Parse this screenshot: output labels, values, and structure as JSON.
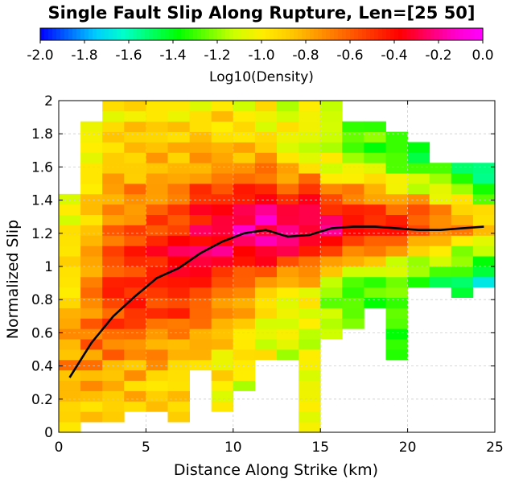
{
  "chart_data": {
    "type": "heatmap",
    "title": "Single Fault Slip Along Rupture, Len=[25 50]",
    "xlabel": "Distance Along Strike (km)",
    "ylabel": "Normalized Slip",
    "xlim": [
      0,
      25
    ],
    "ylim": [
      0,
      2
    ],
    "x_ticks": [
      "0",
      "5",
      "10",
      "15",
      "20",
      "25"
    ],
    "y_ticks": [
      "0",
      "0.2",
      "0.4",
      "0.6",
      "0.8",
      "1",
      "1.2",
      "1.4",
      "1.6",
      "1.8",
      "2"
    ],
    "grid": true,
    "bin_width_x": 1.25,
    "bin_width_y": 0.0625,
    "colorbar": {
      "label": "Log10(Density)",
      "range": [
        -2.0,
        0.0
      ],
      "ticks": [
        "-2.0",
        "-1.8",
        "-1.6",
        "-1.4",
        "-1.2",
        "-1.0",
        "-0.8",
        "-0.6",
        "-0.4",
        "-0.2",
        "0.0"
      ],
      "placement": "top",
      "colormap": [
        "#0000ff",
        "#0066ff",
        "#00ccff",
        "#00ffcc",
        "#00ff66",
        "#00ff00",
        "#66ff00",
        "#ccff00",
        "#ffee00",
        "#ffcc00",
        "#ff9900",
        "#ff6600",
        "#ff3300",
        "#ff0000",
        "#ff0066",
        "#ff00cc",
        "#ff00ff"
      ]
    },
    "density_profiles": [
      {
        "x": 0.625,
        "lo": 0.0,
        "hi": 1.44,
        "center": 0.35,
        "peak": 1.0,
        "sigma": 0.35,
        "floor": -1.05,
        "top": -0.75
      },
      {
        "x": 1.875,
        "lo": 0.05,
        "hi": 1.88,
        "center": 0.7,
        "peak": 1.0,
        "sigma": 0.45,
        "floor": -1.05,
        "top": -0.65
      },
      {
        "x": 3.125,
        "lo": 0.05,
        "hi": 2.0,
        "center": 0.85,
        "peak": 1.0,
        "sigma": 0.45,
        "floor": -1.0,
        "top": -0.55
      },
      {
        "x": 4.375,
        "lo": 0.12,
        "hi": 2.0,
        "center": 0.95,
        "peak": 1.0,
        "sigma": 0.45,
        "floor": -1.0,
        "top": -0.5
      },
      {
        "x": 5.625,
        "lo": 0.15,
        "hi": 2.0,
        "center": 1.0,
        "peak": 1.0,
        "sigma": 0.45,
        "floor": -1.05,
        "top": -0.45
      },
      {
        "x": 6.875,
        "lo": 0.06,
        "hi": 2.0,
        "center": 1.05,
        "peak": 1.0,
        "sigma": 0.4,
        "floor": -1.0,
        "top": -0.38
      },
      {
        "x": 8.125,
        "lo": 0.35,
        "hi": 2.0,
        "center": 1.12,
        "peak": 1.0,
        "sigma": 0.36,
        "floor": -1.0,
        "top": -0.32
      },
      {
        "x": 9.375,
        "lo": 0.12,
        "hi": 2.0,
        "center": 1.18,
        "peak": 1.0,
        "sigma": 0.32,
        "floor": -1.0,
        "top": -0.25
      },
      {
        "x": 10.625,
        "lo": 0.28,
        "hi": 2.0,
        "center": 1.22,
        "peak": 1.0,
        "sigma": 0.29,
        "floor": -1.05,
        "top": -0.22
      },
      {
        "x": 11.875,
        "lo": 0.45,
        "hi": 2.0,
        "center": 1.25,
        "peak": 1.0,
        "sigma": 0.26,
        "floor": -1.05,
        "top": -0.2
      },
      {
        "x": 13.125,
        "lo": 0.45,
        "hi": 2.0,
        "center": 1.25,
        "peak": 1.0,
        "sigma": 0.23,
        "floor": -1.1,
        "top": -0.2
      },
      {
        "x": 14.375,
        "lo": 0.0,
        "hi": 2.0,
        "center": 1.25,
        "peak": 1.0,
        "sigma": 0.21,
        "floor": -1.1,
        "top": -0.22
      },
      {
        "x": 15.625,
        "lo": 0.55,
        "hi": 2.0,
        "center": 1.25,
        "peak": 1.0,
        "sigma": 0.19,
        "floor": -1.2,
        "top": -0.28
      },
      {
        "x": 16.875,
        "lo": 0.6,
        "hi": 1.88,
        "center": 1.27,
        "peak": 1.0,
        "sigma": 0.18,
        "floor": -1.3,
        "top": -0.35
      },
      {
        "x": 18.125,
        "lo": 0.75,
        "hi": 1.88,
        "center": 1.27,
        "peak": 1.0,
        "sigma": 0.17,
        "floor": -1.3,
        "top": -0.42
      },
      {
        "x": 19.375,
        "lo": 0.45,
        "hi": 1.82,
        "center": 1.27,
        "peak": 1.0,
        "sigma": 0.16,
        "floor": -1.35,
        "top": -0.48
      },
      {
        "x": 20.625,
        "lo": 0.88,
        "hi": 1.75,
        "center": 1.26,
        "peak": 1.0,
        "sigma": 0.16,
        "floor": -1.4,
        "top": -0.55
      },
      {
        "x": 21.875,
        "lo": 0.88,
        "hi": 1.62,
        "center": 1.26,
        "peak": 1.0,
        "sigma": 0.15,
        "floor": -1.45,
        "top": -0.62
      },
      {
        "x": 23.125,
        "lo": 0.82,
        "hi": 1.62,
        "center": 1.26,
        "peak": 1.0,
        "sigma": 0.14,
        "floor": -1.5,
        "top": -0.7
      },
      {
        "x": 24.375,
        "lo": 0.88,
        "hi": 1.62,
        "center": 1.25,
        "peak": 1.0,
        "sigma": 0.14,
        "floor": -1.6,
        "top": -0.85
      }
    ],
    "mean_line": {
      "x": [
        0.625,
        1.875,
        3.125,
        4.375,
        5.625,
        6.875,
        8.125,
        9.375,
        10.625,
        11.875,
        13.125,
        14.375,
        15.625,
        16.875,
        18.125,
        19.375,
        20.625,
        21.875,
        23.125,
        24.375
      ],
      "y": [
        0.33,
        0.54,
        0.7,
        0.82,
        0.93,
        0.99,
        1.08,
        1.15,
        1.2,
        1.22,
        1.18,
        1.19,
        1.23,
        1.24,
        1.24,
        1.23,
        1.22,
        1.22,
        1.23,
        1.24
      ],
      "color": "#000000"
    }
  }
}
